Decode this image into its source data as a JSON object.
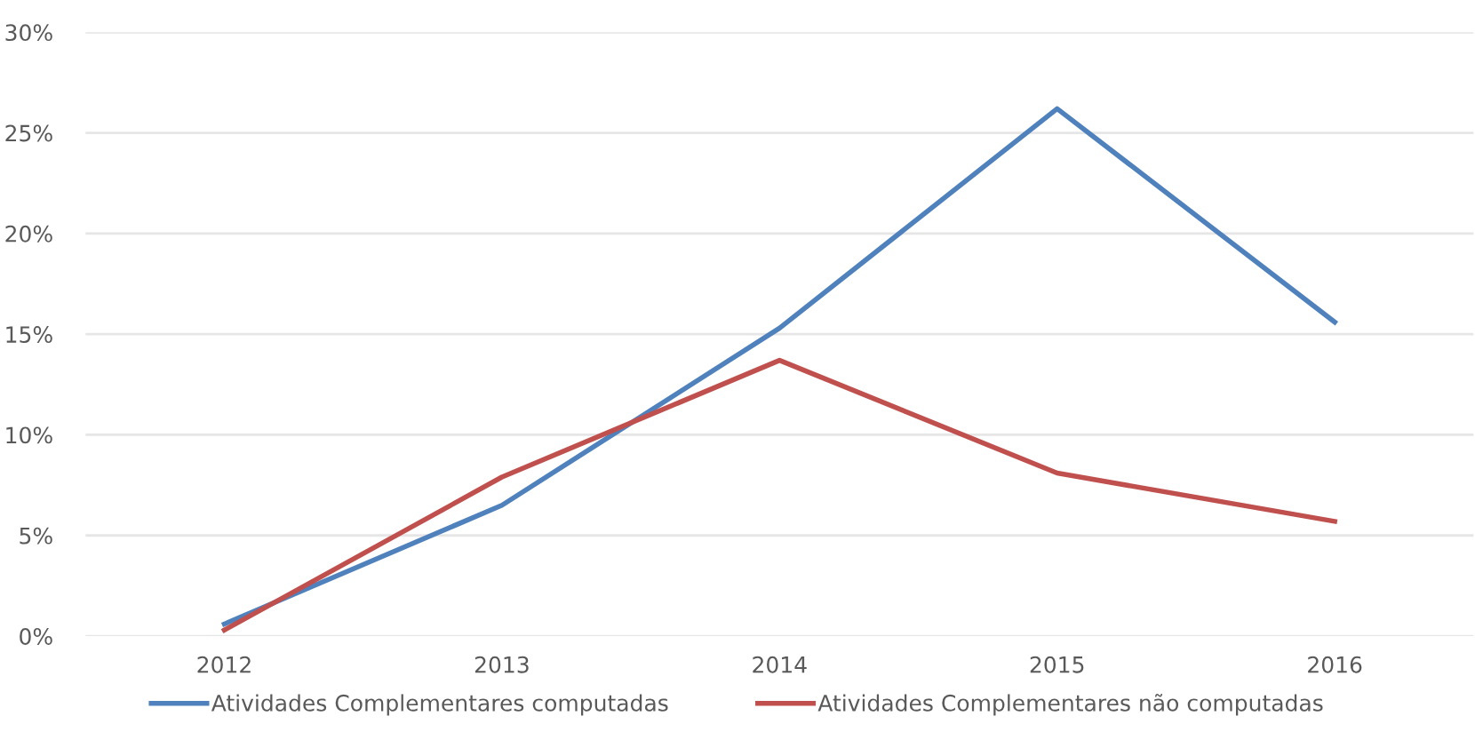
{
  "chart_data": {
    "type": "line",
    "categories": [
      "2012",
      "2013",
      "2014",
      "2015",
      "2016"
    ],
    "series": [
      {
        "name": "Atividades Complementares computadas",
        "color": "#4f81bd",
        "values": [
          0.6,
          6.5,
          15.3,
          26.2,
          15.6
        ]
      },
      {
        "name": "Atividades Complementares não computadas",
        "color": "#c0504d",
        "values": [
          0.3,
          7.9,
          13.7,
          8.1,
          5.7
        ]
      }
    ],
    "ylim": [
      0,
      30
    ],
    "yticks": [
      {
        "value": 0,
        "label": "0%"
      },
      {
        "value": 5,
        "label": "5%"
      },
      {
        "value": 10,
        "label": "10%"
      },
      {
        "value": 15,
        "label": "15%"
      },
      {
        "value": 20,
        "label": "20%"
      },
      {
        "value": 25,
        "label": "25%"
      },
      {
        "value": 30,
        "label": "30%"
      }
    ],
    "grid": "y",
    "legend": "bottom",
    "marker": "none",
    "line_style": "solid"
  }
}
